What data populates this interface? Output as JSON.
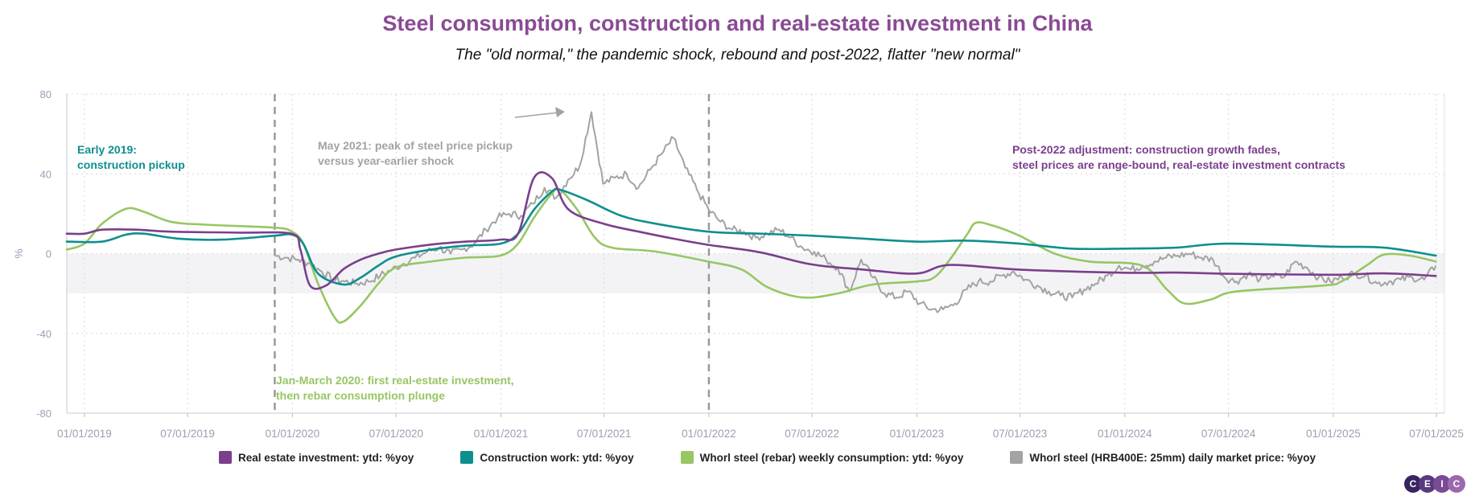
{
  "chart_data": {
    "type": "line",
    "title": "Steel consumption, construction and real-estate investment in China",
    "subtitle": "The \"old normal,\" the pandemic shock, rebound and post-2022, flatter \"new normal\"",
    "ylabel": "%",
    "ylim": [
      -80,
      80
    ],
    "yticks": [
      -80,
      -40,
      0,
      40,
      80
    ],
    "xlim": [
      "2018-12-01",
      "2025-07-15"
    ],
    "xticks": [
      {
        "date": "2019-01-01",
        "label": "01/01/2019"
      },
      {
        "date": "2019-07-01",
        "label": "07/01/2019"
      },
      {
        "date": "2020-01-01",
        "label": "01/01/2020"
      },
      {
        "date": "2020-07-01",
        "label": "07/01/2020"
      },
      {
        "date": "2021-01-01",
        "label": "01/01/2021"
      },
      {
        "date": "2021-07-01",
        "label": "07/01/2021"
      },
      {
        "date": "2022-01-01",
        "label": "01/01/2022"
      },
      {
        "date": "2022-07-01",
        "label": "07/01/2022"
      },
      {
        "date": "2023-01-01",
        "label": "01/01/2023"
      },
      {
        "date": "2023-07-01",
        "label": "07/01/2023"
      },
      {
        "date": "2024-01-01",
        "label": "01/01/2024"
      },
      {
        "date": "2024-07-01",
        "label": "07/01/2024"
      },
      {
        "date": "2025-01-01",
        "label": "01/01/2025"
      },
      {
        "date": "2025-07-01",
        "label": "07/01/2025"
      }
    ],
    "shaded_band": {
      "from": -20,
      "to": 0
    },
    "vlines": [
      "2019-12-01",
      "2022-01-01"
    ],
    "series": [
      {
        "name": "Real estate investment: ytd: %yoy",
        "color": "#7b3f8c",
        "points": [
          [
            "2018-12-01",
            10
          ],
          [
            "2019-01-01",
            10
          ],
          [
            "2019-02-01",
            12
          ],
          [
            "2019-04-01",
            12
          ],
          [
            "2019-06-01",
            11
          ],
          [
            "2019-10-01",
            10.5
          ],
          [
            "2019-12-31",
            9.9
          ],
          [
            "2020-01-15",
            2
          ],
          [
            "2020-02-01",
            -16
          ],
          [
            "2020-02-29",
            -16
          ],
          [
            "2020-03-31",
            -7.7
          ],
          [
            "2020-04-30",
            -3
          ],
          [
            "2020-05-31",
            0
          ],
          [
            "2020-06-30",
            2
          ],
          [
            "2020-08-31",
            4.5
          ],
          [
            "2020-10-31",
            6
          ],
          [
            "2020-12-31",
            7
          ],
          [
            "2021-01-31",
            10
          ],
          [
            "2021-02-28",
            38
          ],
          [
            "2021-03-31",
            38
          ],
          [
            "2021-04-30",
            22
          ],
          [
            "2021-06-30",
            15
          ],
          [
            "2021-08-31",
            11
          ],
          [
            "2021-10-31",
            7.5
          ],
          [
            "2021-12-31",
            4.4
          ],
          [
            "2022-03-31",
            0.7
          ],
          [
            "2022-06-30",
            -5.4
          ],
          [
            "2022-09-30",
            -8
          ],
          [
            "2022-12-31",
            -10
          ],
          [
            "2023-02-28",
            -5.7
          ],
          [
            "2023-06-30",
            -8
          ],
          [
            "2023-12-31",
            -9.6
          ],
          [
            "2024-03-31",
            -9.5
          ],
          [
            "2024-06-30",
            -10.1
          ],
          [
            "2024-12-31",
            -10.6
          ],
          [
            "2025-03-31",
            -9.9
          ],
          [
            "2025-06-30",
            -11.2
          ]
        ]
      },
      {
        "name": "Construction work: ytd: %yoy",
        "color": "#0e8f8f",
        "points": [
          [
            "2018-12-01",
            6
          ],
          [
            "2019-02-01",
            6
          ],
          [
            "2019-03-15",
            9.5
          ],
          [
            "2019-04-15",
            10
          ],
          [
            "2019-06-15",
            7.5
          ],
          [
            "2019-09-01",
            7
          ],
          [
            "2019-12-01",
            9
          ],
          [
            "2019-12-31",
            9.5
          ],
          [
            "2020-01-20",
            5
          ],
          [
            "2020-02-15",
            -10
          ],
          [
            "2020-03-31",
            -15.5
          ],
          [
            "2020-04-30",
            -12
          ],
          [
            "2020-05-31",
            -6
          ],
          [
            "2020-06-30",
            -1.5
          ],
          [
            "2020-08-31",
            2
          ],
          [
            "2020-10-31",
            4
          ],
          [
            "2020-12-31",
            5
          ],
          [
            "2021-01-31",
            10
          ],
          [
            "2021-02-28",
            22
          ],
          [
            "2021-03-31",
            31
          ],
          [
            "2021-04-15",
            32
          ],
          [
            "2021-05-31",
            27
          ],
          [
            "2021-07-31",
            19
          ],
          [
            "2021-09-30",
            15
          ],
          [
            "2021-12-31",
            11
          ],
          [
            "2022-03-31",
            10
          ],
          [
            "2022-06-30",
            9
          ],
          [
            "2022-09-30",
            7.5
          ],
          [
            "2022-12-31",
            6
          ],
          [
            "2023-03-31",
            6.5
          ],
          [
            "2023-06-30",
            5
          ],
          [
            "2023-09-30",
            2.5
          ],
          [
            "2023-12-31",
            2.5
          ],
          [
            "2024-03-31",
            3
          ],
          [
            "2024-06-30",
            5
          ],
          [
            "2024-12-31",
            3.5
          ],
          [
            "2025-03-31",
            3
          ],
          [
            "2025-06-30",
            -1
          ]
        ]
      },
      {
        "name": "Whorl steel (rebar) weekly consumption: ytd: %yoy",
        "color": "#97c664",
        "points": [
          [
            "2018-12-01",
            2
          ],
          [
            "2019-01-01",
            5
          ],
          [
            "2019-02-01",
            15
          ],
          [
            "2019-03-15",
            22.5
          ],
          [
            "2019-04-15",
            21
          ],
          [
            "2019-06-01",
            16
          ],
          [
            "2019-08-01",
            14.5
          ],
          [
            "2019-12-01",
            13
          ],
          [
            "2019-12-31",
            11
          ],
          [
            "2020-01-20",
            5
          ],
          [
            "2020-02-15",
            -15
          ],
          [
            "2020-03-15",
            -32
          ],
          [
            "2020-03-31",
            -34
          ],
          [
            "2020-04-30",
            -26
          ],
          [
            "2020-05-31",
            -15
          ],
          [
            "2020-06-30",
            -7
          ],
          [
            "2020-08-31",
            -4
          ],
          [
            "2020-10-31",
            -2
          ],
          [
            "2020-12-31",
            -1
          ],
          [
            "2021-01-31",
            5
          ],
          [
            "2021-02-28",
            18
          ],
          [
            "2021-03-31",
            30
          ],
          [
            "2021-04-15",
            32
          ],
          [
            "2021-05-15",
            22
          ],
          [
            "2021-06-15",
            8
          ],
          [
            "2021-07-15",
            3
          ],
          [
            "2021-09-30",
            1
          ],
          [
            "2021-12-31",
            -4
          ],
          [
            "2022-02-28",
            -8
          ],
          [
            "2022-04-15",
            -17
          ],
          [
            "2022-06-15",
            -22
          ],
          [
            "2022-08-15",
            -20
          ],
          [
            "2022-10-15",
            -15.5
          ],
          [
            "2022-12-31",
            -14
          ],
          [
            "2023-01-31",
            -12
          ],
          [
            "2023-02-28",
            -3
          ],
          [
            "2023-03-31",
            10
          ],
          [
            "2023-04-15",
            15.5
          ],
          [
            "2023-05-15",
            14
          ],
          [
            "2023-06-30",
            9
          ],
          [
            "2023-08-31",
            0
          ],
          [
            "2023-10-31",
            -4
          ],
          [
            "2024-01-31",
            -6
          ],
          [
            "2024-03-15",
            -18
          ],
          [
            "2024-04-15",
            -25
          ],
          [
            "2024-05-31",
            -23
          ],
          [
            "2024-07-15",
            -19
          ],
          [
            "2024-12-15",
            -16
          ],
          [
            "2025-01-15",
            -14
          ],
          [
            "2025-02-28",
            -6
          ],
          [
            "2025-03-31",
            -0.5
          ],
          [
            "2025-05-15",
            -1
          ],
          [
            "2025-06-30",
            -4
          ]
        ]
      },
      {
        "name": "Whorl steel (HRB400E: 25mm) daily market price: %yoy",
        "color": "#a3a3a3",
        "start": "2019-12-01",
        "end": "2025-06-30",
        "points": [
          -1,
          -2,
          -3,
          -5,
          -9,
          -13,
          -14,
          -15,
          -14,
          -11,
          -8,
          -5,
          -2,
          1,
          3,
          0,
          2,
          5,
          12,
          18,
          20,
          19,
          25,
          33,
          28,
          37,
          44,
          71,
          35,
          38,
          40,
          33,
          42,
          50,
          58,
          43,
          32,
          22,
          16,
          12,
          11,
          8,
          10,
          12,
          8,
          3,
          1,
          -3,
          -7,
          -19,
          -3,
          -12,
          -20,
          -22,
          -19,
          -25,
          -28,
          -28,
          -25,
          -18,
          -14,
          -14,
          -11,
          -9,
          -13,
          -16,
          -19,
          -21,
          -22,
          -18,
          -15,
          -11,
          -6,
          -8,
          -6,
          -4,
          -2,
          -1,
          0,
          -2,
          -3,
          -12,
          -14,
          -10,
          -13,
          -11,
          -12,
          -4,
          -7,
          -12,
          -14,
          -12,
          -10,
          -11,
          -15,
          -14,
          -13,
          -12,
          -13,
          -6
        ]
      }
    ],
    "annotations": [
      {
        "text": [
          "Early 2019:",
          "construction pickup"
        ],
        "color": "#0e8f8f"
      },
      {
        "text": [
          "May 2021: peak of steel price pickup",
          "versus year-earlier shock"
        ],
        "color": "#a3a3a3"
      },
      {
        "text": [
          "Jan-March 2020: first real-estate investment,",
          "then rebar consumption plunge"
        ],
        "color": "#97c664"
      },
      {
        "text": [
          "Post-2022 adjustment: construction growth fades,",
          "steel prices are range-bound, real-estate investment contracts"
        ],
        "color": "#7b3f8c"
      }
    ]
  },
  "logo": {
    "letters": [
      "C",
      "E",
      "I",
      "C"
    ],
    "colors": [
      "#3a2460",
      "#5a3a7e",
      "#7b4a95",
      "#9a6aad"
    ]
  }
}
